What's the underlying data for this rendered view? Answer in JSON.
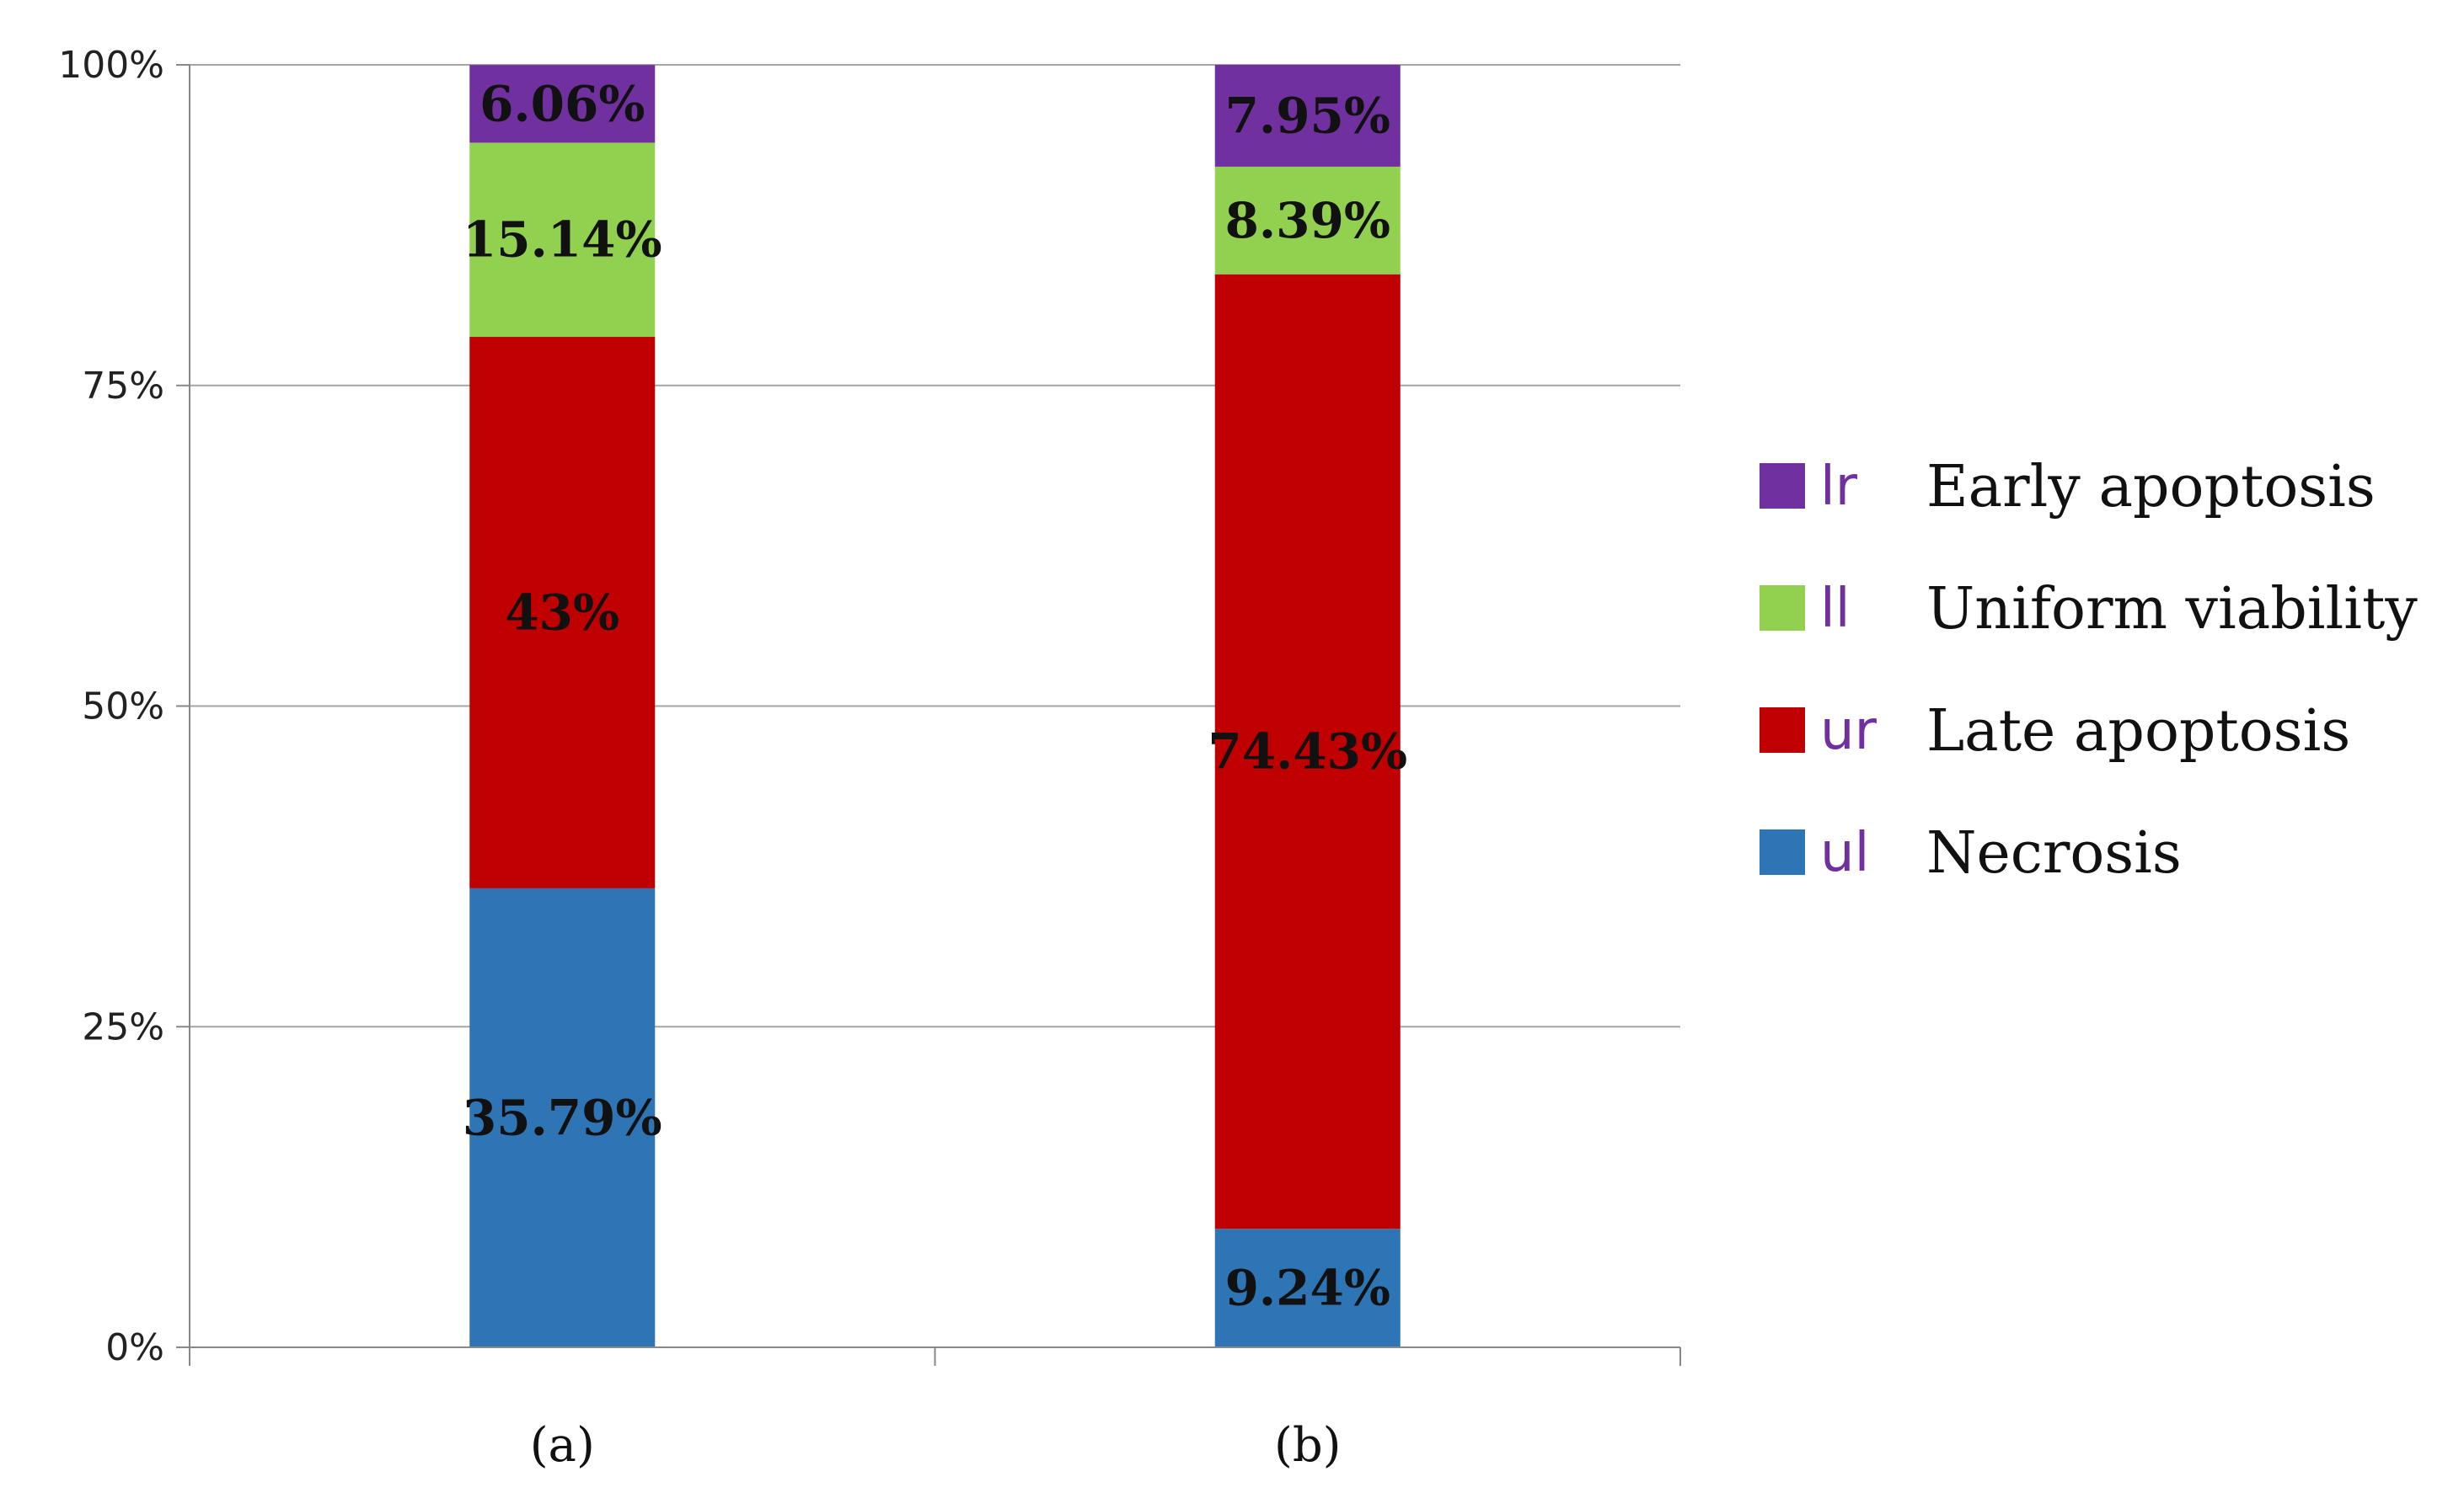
{
  "chart_data": {
    "type": "bar",
    "stacked": true,
    "categories": [
      "(a)",
      "(b)"
    ],
    "series": [
      {
        "code": "ul",
        "name": "Necrosis",
        "color": "#2E75B6",
        "values": [
          35.79,
          9.24
        ],
        "labels": [
          "35.79%",
          "9.24%"
        ]
      },
      {
        "code": "ur",
        "name": "Late apoptosis",
        "color": "#C00000",
        "values": [
          43,
          74.43
        ],
        "labels": [
          "43%",
          "74.43%"
        ]
      },
      {
        "code": "ll",
        "name": "Uniform viability",
        "color": "#92D050",
        "values": [
          15.14,
          8.39
        ],
        "labels": [
          "15.14%",
          "8.39%"
        ]
      },
      {
        "code": "lr",
        "name": "Early apoptosis",
        "color": "#7030A0",
        "values": [
          6.06,
          7.95
        ],
        "labels": [
          "6.06%",
          "7.95%"
        ]
      }
    ],
    "yticks": [
      "0%",
      "25%",
      "50%",
      "75%",
      "100%"
    ],
    "ytick_values": [
      0,
      25,
      50,
      75,
      100
    ],
    "ylim": [
      0,
      100
    ],
    "title": "",
    "xlabel": "",
    "ylabel": "",
    "grid": true,
    "legend": {
      "placement": "right",
      "order": [
        "lr",
        "ll",
        "ur",
        "ul"
      ],
      "code_color": "#7030A0"
    }
  }
}
